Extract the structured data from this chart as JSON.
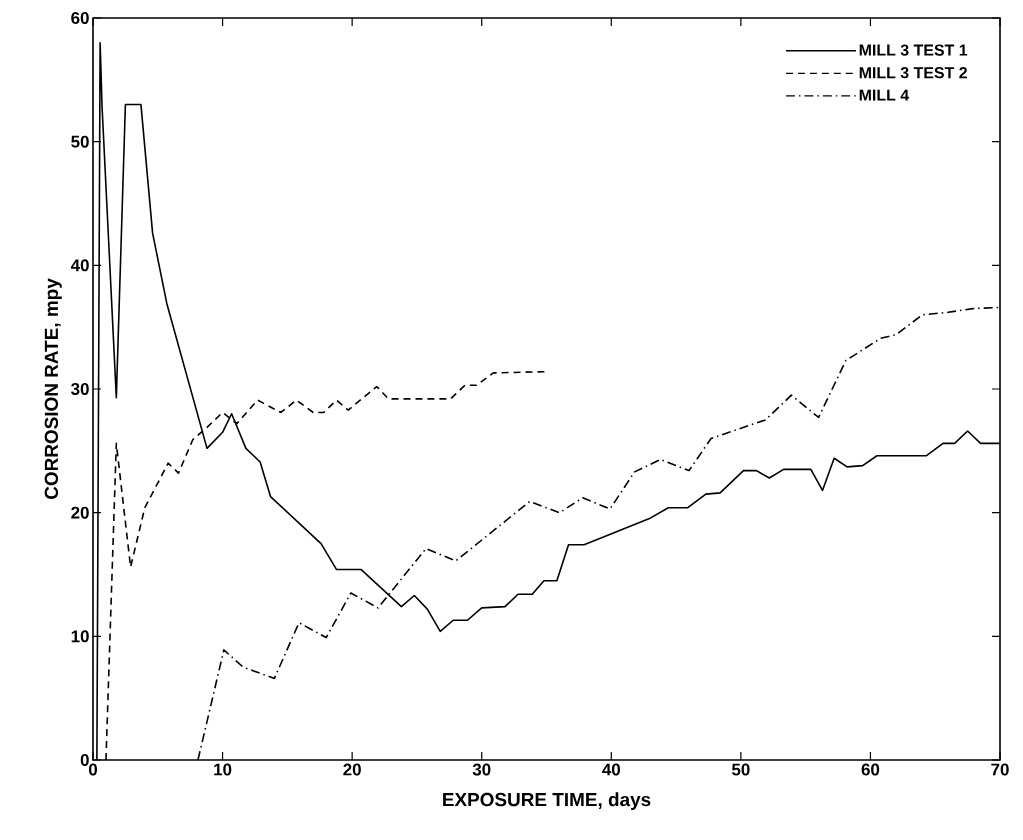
{
  "chart_data": {
    "type": "line",
    "xlabel": "EXPOSURE TIME, days",
    "ylabel": "CORROSION RATE, mpy",
    "xlim": [
      0,
      70
    ],
    "ylim": [
      0,
      60
    ],
    "xticks": [
      0,
      10,
      20,
      30,
      40,
      50,
      60,
      70
    ],
    "yticks": [
      0,
      10,
      20,
      30,
      40,
      50,
      60
    ],
    "legend": "top right",
    "marker": "none",
    "grid": false,
    "series": [
      {
        "name": "MILL 3 TEST 1",
        "color": "#000000",
        "line_style": "solid",
        "x": [
          0.3,
          0.55,
          0.7,
          1.8,
          2.5,
          3.7,
          4.6,
          5.7,
          8.8,
          10,
          10.7,
          11.8,
          12.9,
          13.7,
          17.6,
          18.8,
          20.7,
          23.8,
          24.8,
          25.8,
          26.8,
          27.8,
          28.9,
          30,
          31.8,
          32.8,
          33.9,
          34.8,
          35.8,
          36.7,
          37.9,
          42.9,
          44.4,
          45.9,
          47.3,
          48.4,
          50.2,
          51.2,
          52.2,
          53.3,
          55.4,
          56.3,
          57.2,
          58.2,
          59.4,
          60.5,
          64.3,
          65.6,
          66.5,
          67.5,
          68.5,
          70
        ],
        "values": [
          0,
          58,
          52.8,
          29.3,
          53,
          53,
          42.6,
          36.9,
          25.2,
          26.5,
          28,
          25.2,
          24.1,
          21.3,
          17.5,
          15.4,
          15.4,
          12.4,
          13.3,
          12.2,
          10.4,
          11.3,
          11.3,
          12.3,
          12.4,
          13.4,
          13.4,
          14.5,
          14.5,
          17.4,
          17.4,
          19.5,
          20.4,
          20.4,
          21.5,
          21.6,
          23.4,
          23.4,
          22.8,
          23.5,
          23.5,
          21.8,
          24.4,
          23.7,
          23.8,
          24.6,
          24.6,
          25.6,
          25.6,
          26.6,
          25.6,
          25.6
        ]
      },
      {
        "name": "MILL 3 TEST 2",
        "color": "#000000",
        "line_style": "dashed",
        "x": [
          1.0,
          1.8,
          2.9,
          4.0,
          5.8,
          6.6,
          7.7,
          8.8,
          10.0,
          11.1,
          12.7,
          14.5,
          15.7,
          17.0,
          17.8,
          18.8,
          19.7,
          21.9,
          22.8,
          27.6,
          28.7,
          29.6,
          30.9,
          34.9
        ],
        "values": [
          0,
          25.6,
          15.6,
          20.4,
          24.0,
          23.2,
          25.9,
          26.9,
          28.1,
          27.2,
          29.1,
          28.1,
          29.1,
          28.1,
          28.1,
          29.1,
          28.3,
          30.2,
          29.2,
          29.2,
          30.3,
          30.3,
          31.3,
          31.4
        ]
      },
      {
        "name": "MILL 4",
        "color": "#000000",
        "line_style": "dashdot",
        "x": [
          8.1,
          10.1,
          11.6,
          14.0,
          15.9,
          18.0,
          19.9,
          22.0,
          25.7,
          28.0,
          33.7,
          36.0,
          37.8,
          39.9,
          41.8,
          43.8,
          46.0,
          47.7,
          51.9,
          53.9,
          56.0,
          58.1,
          60.8,
          62.0,
          64.0,
          66.0,
          67.9,
          70
        ],
        "values": [
          0,
          8.9,
          7.5,
          6.6,
          11.1,
          9.9,
          13.5,
          12.3,
          17.1,
          16.1,
          20.9,
          20.0,
          21.2,
          20.3,
          23.3,
          24.3,
          23.4,
          26.0,
          27.5,
          29.5,
          27.7,
          32.3,
          34.1,
          34.4,
          36.0,
          36.2,
          36.5,
          36.6
        ]
      }
    ]
  }
}
